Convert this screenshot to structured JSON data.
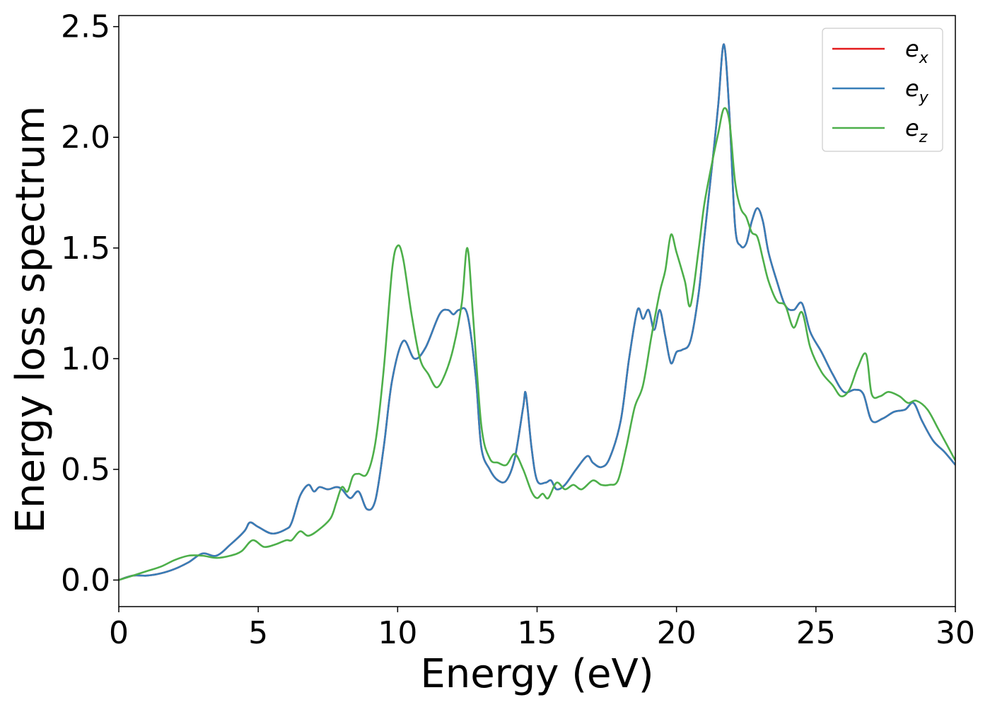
{
  "chart_data": {
    "type": "line",
    "title": "",
    "xlabel": "Energy (eV)",
    "ylabel": "Energy loss spectrum",
    "xlim": [
      0,
      30
    ],
    "ylim": [
      -0.12,
      2.55
    ],
    "xticks": [
      0,
      5,
      10,
      15,
      20,
      25,
      30
    ],
    "xtick_labels": [
      "0",
      "5",
      "10",
      "15",
      "20",
      "25",
      "30"
    ],
    "yticks": [
      0.0,
      0.5,
      1.0,
      1.5,
      2.0,
      2.5
    ],
    "ytick_labels": [
      "0.0",
      "0.5",
      "1.0",
      "1.5",
      "2.0",
      "2.5"
    ],
    "grid": false,
    "legend": {
      "position": "top-right"
    },
    "series": [
      {
        "name": "e_x",
        "legend_base": "e",
        "legend_sub": "x",
        "color": "#e41a1c",
        "x": [
          0,
          0.5,
          1.0,
          1.5,
          2.0,
          2.5,
          3.0,
          3.5,
          4.0,
          4.5,
          4.7,
          5.0,
          5.5,
          6.0,
          6.2,
          6.5,
          6.8,
          7.0,
          7.2,
          7.5,
          7.8,
          8.0,
          8.3,
          8.6,
          8.9,
          9.2,
          9.5,
          9.8,
          10.2,
          10.6,
          11.0,
          11.5,
          11.8,
          12.0,
          12.2,
          12.5,
          12.8,
          13.0,
          13.3,
          13.6,
          13.9,
          14.2,
          14.5,
          14.6,
          14.8,
          15.0,
          15.3,
          15.5,
          15.7,
          16.0,
          16.4,
          16.8,
          17.0,
          17.3,
          17.6,
          18.0,
          18.3,
          18.6,
          18.8,
          19.0,
          19.2,
          19.4,
          19.6,
          19.8,
          20.0,
          20.2,
          20.5,
          20.8,
          21.0,
          21.3,
          21.5,
          21.7,
          21.9,
          22.1,
          22.3,
          22.5,
          22.7,
          22.9,
          23.1,
          23.3,
          23.6,
          23.9,
          24.2,
          24.5,
          24.8,
          25.2,
          25.6,
          26.0,
          26.4,
          26.7,
          27.0,
          27.4,
          27.8,
          28.2,
          28.5,
          28.8,
          29.2,
          29.6,
          30.0
        ],
        "y": [
          0.0,
          0.02,
          0.02,
          0.03,
          0.05,
          0.08,
          0.12,
          0.11,
          0.16,
          0.22,
          0.26,
          0.24,
          0.21,
          0.23,
          0.26,
          0.38,
          0.43,
          0.4,
          0.42,
          0.41,
          0.42,
          0.41,
          0.37,
          0.4,
          0.32,
          0.36,
          0.6,
          0.9,
          1.08,
          1.0,
          1.05,
          1.2,
          1.22,
          1.2,
          1.22,
          1.2,
          0.92,
          0.6,
          0.5,
          0.45,
          0.45,
          0.55,
          0.78,
          0.84,
          0.6,
          0.45,
          0.44,
          0.45,
          0.41,
          0.43,
          0.5,
          0.56,
          0.53,
          0.51,
          0.55,
          0.72,
          1.0,
          1.22,
          1.18,
          1.22,
          1.13,
          1.22,
          1.1,
          0.98,
          1.03,
          1.04,
          1.08,
          1.3,
          1.55,
          1.9,
          2.15,
          2.42,
          2.1,
          1.6,
          1.51,
          1.52,
          1.62,
          1.68,
          1.62,
          1.48,
          1.35,
          1.24,
          1.22,
          1.25,
          1.12,
          1.03,
          0.93,
          0.85,
          0.86,
          0.84,
          0.72,
          0.73,
          0.76,
          0.77,
          0.8,
          0.72,
          0.63,
          0.58,
          0.52
        ]
      },
      {
        "name": "e_y",
        "legend_base": "e",
        "legend_sub": "y",
        "color": "#377eb8",
        "x": [
          0,
          0.5,
          1.0,
          1.5,
          2.0,
          2.5,
          3.0,
          3.5,
          4.0,
          4.5,
          4.7,
          5.0,
          5.5,
          6.0,
          6.2,
          6.5,
          6.8,
          7.0,
          7.2,
          7.5,
          7.8,
          8.0,
          8.3,
          8.6,
          8.9,
          9.2,
          9.5,
          9.8,
          10.2,
          10.6,
          11.0,
          11.5,
          11.8,
          12.0,
          12.2,
          12.5,
          12.8,
          13.0,
          13.3,
          13.6,
          13.9,
          14.2,
          14.5,
          14.6,
          14.8,
          15.0,
          15.3,
          15.5,
          15.7,
          16.0,
          16.4,
          16.8,
          17.0,
          17.3,
          17.6,
          18.0,
          18.3,
          18.6,
          18.8,
          19.0,
          19.2,
          19.4,
          19.6,
          19.8,
          20.0,
          20.2,
          20.5,
          20.8,
          21.0,
          21.3,
          21.5,
          21.7,
          21.9,
          22.1,
          22.3,
          22.5,
          22.7,
          22.9,
          23.1,
          23.3,
          23.6,
          23.9,
          24.2,
          24.5,
          24.8,
          25.2,
          25.6,
          26.0,
          26.4,
          26.7,
          27.0,
          27.4,
          27.8,
          28.2,
          28.5,
          28.8,
          29.2,
          29.6,
          30.0
        ],
        "y": [
          0.0,
          0.02,
          0.02,
          0.03,
          0.05,
          0.08,
          0.12,
          0.11,
          0.16,
          0.22,
          0.26,
          0.24,
          0.21,
          0.23,
          0.26,
          0.38,
          0.43,
          0.4,
          0.42,
          0.41,
          0.42,
          0.41,
          0.37,
          0.4,
          0.32,
          0.36,
          0.6,
          0.9,
          1.08,
          1.0,
          1.05,
          1.2,
          1.22,
          1.2,
          1.22,
          1.2,
          0.92,
          0.6,
          0.5,
          0.45,
          0.45,
          0.55,
          0.78,
          0.84,
          0.6,
          0.45,
          0.44,
          0.45,
          0.41,
          0.43,
          0.5,
          0.56,
          0.53,
          0.51,
          0.55,
          0.72,
          1.0,
          1.22,
          1.18,
          1.22,
          1.13,
          1.22,
          1.1,
          0.98,
          1.03,
          1.04,
          1.08,
          1.3,
          1.55,
          1.9,
          2.15,
          2.42,
          2.1,
          1.6,
          1.51,
          1.52,
          1.62,
          1.68,
          1.62,
          1.48,
          1.35,
          1.24,
          1.22,
          1.25,
          1.12,
          1.03,
          0.93,
          0.85,
          0.86,
          0.84,
          0.72,
          0.73,
          0.76,
          0.77,
          0.8,
          0.72,
          0.63,
          0.58,
          0.52
        ]
      },
      {
        "name": "e_z",
        "legend_base": "e",
        "legend_sub": "z",
        "color": "#4daf4a",
        "x": [
          0,
          0.5,
          1.0,
          1.5,
          2.0,
          2.5,
          3.0,
          3.5,
          4.0,
          4.4,
          4.8,
          5.2,
          5.6,
          6.0,
          6.2,
          6.5,
          6.8,
          7.2,
          7.6,
          7.8,
          8.0,
          8.2,
          8.4,
          8.6,
          8.9,
          9.2,
          9.5,
          9.8,
          10.0,
          10.2,
          10.5,
          10.8,
          11.1,
          11.4,
          11.7,
          12.0,
          12.3,
          12.5,
          12.7,
          13.0,
          13.3,
          13.6,
          13.9,
          14.2,
          14.5,
          14.8,
          15.0,
          15.2,
          15.4,
          15.7,
          16.0,
          16.3,
          16.6,
          17.0,
          17.3,
          17.6,
          17.9,
          18.2,
          18.5,
          18.8,
          19.1,
          19.4,
          19.6,
          19.8,
          20.0,
          20.3,
          20.5,
          20.8,
          21.0,
          21.3,
          21.5,
          21.7,
          21.9,
          22.1,
          22.3,
          22.5,
          22.7,
          22.9,
          23.1,
          23.3,
          23.6,
          23.9,
          24.2,
          24.5,
          24.8,
          25.2,
          25.6,
          25.9,
          26.2,
          26.5,
          26.8,
          27.0,
          27.3,
          27.6,
          28.0,
          28.3,
          28.6,
          29.0,
          29.4,
          29.7,
          30.0
        ],
        "y": [
          0.0,
          0.02,
          0.04,
          0.06,
          0.09,
          0.11,
          0.11,
          0.1,
          0.11,
          0.13,
          0.18,
          0.15,
          0.16,
          0.18,
          0.18,
          0.22,
          0.2,
          0.23,
          0.28,
          0.35,
          0.42,
          0.4,
          0.47,
          0.48,
          0.48,
          0.62,
          0.95,
          1.4,
          1.51,
          1.45,
          1.2,
          1.0,
          0.93,
          0.87,
          0.93,
          1.05,
          1.25,
          1.5,
          1.2,
          0.7,
          0.55,
          0.53,
          0.52,
          0.57,
          0.5,
          0.4,
          0.37,
          0.39,
          0.37,
          0.44,
          0.41,
          0.43,
          0.41,
          0.45,
          0.43,
          0.43,
          0.45,
          0.6,
          0.78,
          0.88,
          1.1,
          1.3,
          1.4,
          1.56,
          1.48,
          1.35,
          1.24,
          1.5,
          1.7,
          1.9,
          2.02,
          2.13,
          2.07,
          1.8,
          1.68,
          1.64,
          1.57,
          1.55,
          1.45,
          1.35,
          1.26,
          1.24,
          1.14,
          1.21,
          1.05,
          0.94,
          0.88,
          0.83,
          0.86,
          0.96,
          1.02,
          0.84,
          0.83,
          0.85,
          0.83,
          0.8,
          0.81,
          0.77,
          0.68,
          0.61,
          0.54
        ]
      }
    ]
  }
}
